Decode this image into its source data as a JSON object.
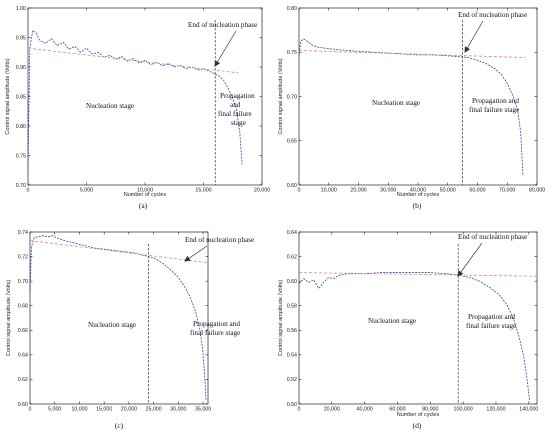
{
  "chart_data": [
    {
      "type": "line",
      "panel_label": "(a)",
      "xlabel": "Number of cycles",
      "ylabel": "Control signal amplitude (Volts)",
      "xlim": [
        0,
        20000
      ],
      "ylim": [
        0.7,
        1.0
      ],
      "xticks": [
        0,
        5000,
        10000,
        15000,
        20000
      ],
      "xtick_labels": [
        "0",
        "5,000",
        "10,000",
        "15,000",
        "20,000"
      ],
      "yticks": [
        0.7,
        0.75,
        0.8,
        0.85,
        0.9,
        0.95,
        1.0
      ],
      "ytick_labels": [
        "0.70",
        "0.75",
        "0.80",
        "0.85",
        "0.90",
        "0.95",
        "1.00"
      ],
      "phase_boundary_x": 16000,
      "series": [
        {
          "style": "dashed-blue",
          "x": [
            0,
            150,
            400,
            700,
            1000,
            1500,
            2000,
            2500,
            3000,
            3500,
            4000,
            4500,
            5000,
            5500,
            6000,
            6500,
            7000,
            7500,
            8000,
            8500,
            9000,
            9500,
            10000,
            10500,
            11000,
            11500,
            12000,
            12500,
            13000,
            13500,
            14000,
            14500,
            15000,
            15500,
            16000,
            16300,
            16700,
            17000,
            17400,
            17800,
            18100,
            18300
          ],
          "y": [
            0.72,
            0.93,
            0.962,
            0.958,
            0.945,
            0.94,
            0.948,
            0.936,
            0.942,
            0.93,
            0.935,
            0.925,
            0.932,
            0.922,
            0.925,
            0.916,
            0.92,
            0.913,
            0.918,
            0.91,
            0.914,
            0.907,
            0.911,
            0.904,
            0.908,
            0.902,
            0.906,
            0.9,
            0.903,
            0.897,
            0.9,
            0.895,
            0.897,
            0.893,
            0.888,
            0.885,
            0.878,
            0.868,
            0.852,
            0.83,
            0.79,
            0.735
          ]
        },
        {
          "style": "dashed-red-trend",
          "x": [
            0,
            18000
          ],
          "y": [
            0.932,
            0.89
          ]
        }
      ],
      "annotations": [
        {
          "text": "End of nucleation phase",
          "x": 16000,
          "y": 0.905
        },
        {
          "text": "Nucleation stage"
        },
        {
          "text": "Propagation"
        },
        {
          "text": "and"
        },
        {
          "text": "final failure"
        },
        {
          "text": "stage"
        }
      ]
    },
    {
      "type": "line",
      "panel_label": "(b)",
      "xlabel": "Number of cycles",
      "ylabel": "Control signal amplitude (Volts)",
      "xlim": [
        0,
        80000
      ],
      "ylim": [
        0.6,
        0.8
      ],
      "xticks": [
        0,
        10000,
        20000,
        30000,
        40000,
        50000,
        60000,
        70000,
        80000
      ],
      "xtick_labels": [
        "0",
        "10,000",
        "20,000",
        "30,000",
        "40,000",
        "50,000",
        "60,000",
        "70,000",
        "80,000"
      ],
      "yticks": [
        0.6,
        0.65,
        0.7,
        0.75,
        0.8
      ],
      "ytick_labels": [
        "0.60",
        "0.65",
        "0.70",
        "0.75",
        "0.80"
      ],
      "phase_boundary_x": 55000,
      "series": [
        {
          "style": "dashed-blue",
          "x": [
            0,
            500,
            1500,
            3000,
            4500,
            6000,
            8000,
            10000,
            13000,
            16000,
            20000,
            25000,
            30000,
            35000,
            40000,
            45000,
            50000,
            54000,
            57000,
            60000,
            63000,
            66000,
            68000,
            70000,
            72000,
            73500,
            74500,
            75300
          ],
          "y": [
            0.745,
            0.762,
            0.765,
            0.762,
            0.758,
            0.756,
            0.755,
            0.754,
            0.753,
            0.752,
            0.751,
            0.75,
            0.749,
            0.748,
            0.747,
            0.747,
            0.746,
            0.745,
            0.744,
            0.741,
            0.737,
            0.731,
            0.725,
            0.715,
            0.7,
            0.685,
            0.66,
            0.61
          ]
        },
        {
          "style": "dashed-red-trend",
          "x": [
            0,
            76000
          ],
          "y": [
            0.752,
            0.744
          ]
        }
      ],
      "annotations": [
        {
          "text": "End of nucleation phase",
          "x": 55000,
          "y": 0.748
        },
        {
          "text": "Nucleation stage"
        },
        {
          "text": "Propagation and"
        },
        {
          "text": "final failure stage"
        }
      ]
    },
    {
      "type": "line",
      "panel_label": "(c)",
      "xlabel": "",
      "ylabel": "Control signal amplitude (Volts)",
      "xlim": [
        0,
        36000
      ],
      "ylim": [
        0.6,
        0.74
      ],
      "xticks": [
        0,
        5000,
        10000,
        15000,
        20000,
        25000,
        30000,
        35000
      ],
      "xtick_labels": [
        "0",
        "5,000",
        "10,000",
        "15,000",
        "20,000",
        "25,000",
        "30,000",
        "35,000"
      ],
      "yticks": [
        0.6,
        0.62,
        0.64,
        0.66,
        0.68,
        0.7,
        0.72,
        0.74
      ],
      "ytick_labels": [
        "0.60",
        "0.62",
        "0.64",
        "0.66",
        "0.68",
        "0.70",
        "0.72",
        "0.74"
      ],
      "phase_boundary_x": 24000,
      "series": [
        {
          "style": "dashed-blue",
          "x": [
            0,
            300,
            800,
            1500,
            2500,
            3500,
            4500,
            5500,
            7000,
            9000,
            11000,
            13000,
            15000,
            17000,
            19000,
            21000,
            23000,
            24000,
            25500,
            27000,
            28500,
            30000,
            31500,
            32500,
            33500,
            34300,
            34900,
            35300,
            35600
          ],
          "y": [
            0.69,
            0.728,
            0.735,
            0.736,
            0.737,
            0.736,
            0.737,
            0.735,
            0.733,
            0.731,
            0.729,
            0.727,
            0.726,
            0.725,
            0.724,
            0.723,
            0.721,
            0.72,
            0.718,
            0.714,
            0.709,
            0.703,
            0.694,
            0.686,
            0.675,
            0.662,
            0.645,
            0.625,
            0.603
          ]
        },
        {
          "style": "dashed-red-trend",
          "x": [
            0,
            36000
          ],
          "y": [
            0.733,
            0.715
          ]
        }
      ],
      "annotations": [
        {
          "text": "End of nucleation phase",
          "x": 24000,
          "y": 0.721
        },
        {
          "text": "Nucleation stage"
        },
        {
          "text": "Propagation and"
        },
        {
          "text": "final failure stage"
        }
      ]
    },
    {
      "type": "line",
      "panel_label": "(d)",
      "xlabel": "Number of cycles",
      "ylabel": "Control signal amplitude (Volts)",
      "xlim": [
        0,
        145000
      ],
      "ylim": [
        0.5,
        0.64
      ],
      "xticks": [
        0,
        20000,
        40000,
        60000,
        80000,
        100000,
        120000,
        140000
      ],
      "xtick_labels": [
        "0",
        "20,000",
        "40,000",
        "60,000",
        "80,000",
        "100,000",
        "120,000",
        "140,000"
      ],
      "yticks": [
        0.5,
        0.52,
        0.54,
        0.56,
        0.58,
        0.6,
        0.62,
        0.64
      ],
      "ytick_labels": [
        "0.50",
        "0.52",
        "0.54",
        "0.56",
        "0.58",
        "0.60",
        "0.62",
        "0.64"
      ],
      "phase_boundary_x": 97000,
      "series": [
        {
          "style": "dashed-blue",
          "x": [
            0,
            3000,
            6000,
            9000,
            12000,
            15000,
            18000,
            21000,
            25000,
            30000,
            40000,
            50000,
            60000,
            70000,
            80000,
            90000,
            97000,
            104000,
            110000,
            116000,
            122000,
            127000,
            131000,
            134000,
            137000,
            139000,
            140500
          ],
          "y": [
            0.598,
            0.602,
            0.599,
            0.601,
            0.594,
            0.599,
            0.603,
            0.602,
            0.605,
            0.606,
            0.606,
            0.607,
            0.607,
            0.607,
            0.607,
            0.606,
            0.605,
            0.603,
            0.6,
            0.595,
            0.589,
            0.58,
            0.568,
            0.555,
            0.538,
            0.52,
            0.502
          ]
        },
        {
          "style": "dashed-red-trend",
          "x": [
            0,
            145000
          ],
          "y": [
            0.607,
            0.604
          ]
        }
      ],
      "annotations": [
        {
          "text": "End of nucleation phase",
          "x": 97000,
          "y": 0.606
        },
        {
          "text": "Nucleation stage"
        },
        {
          "text": "Propagation and"
        },
        {
          "text": "final failure stage"
        }
      ]
    }
  ]
}
